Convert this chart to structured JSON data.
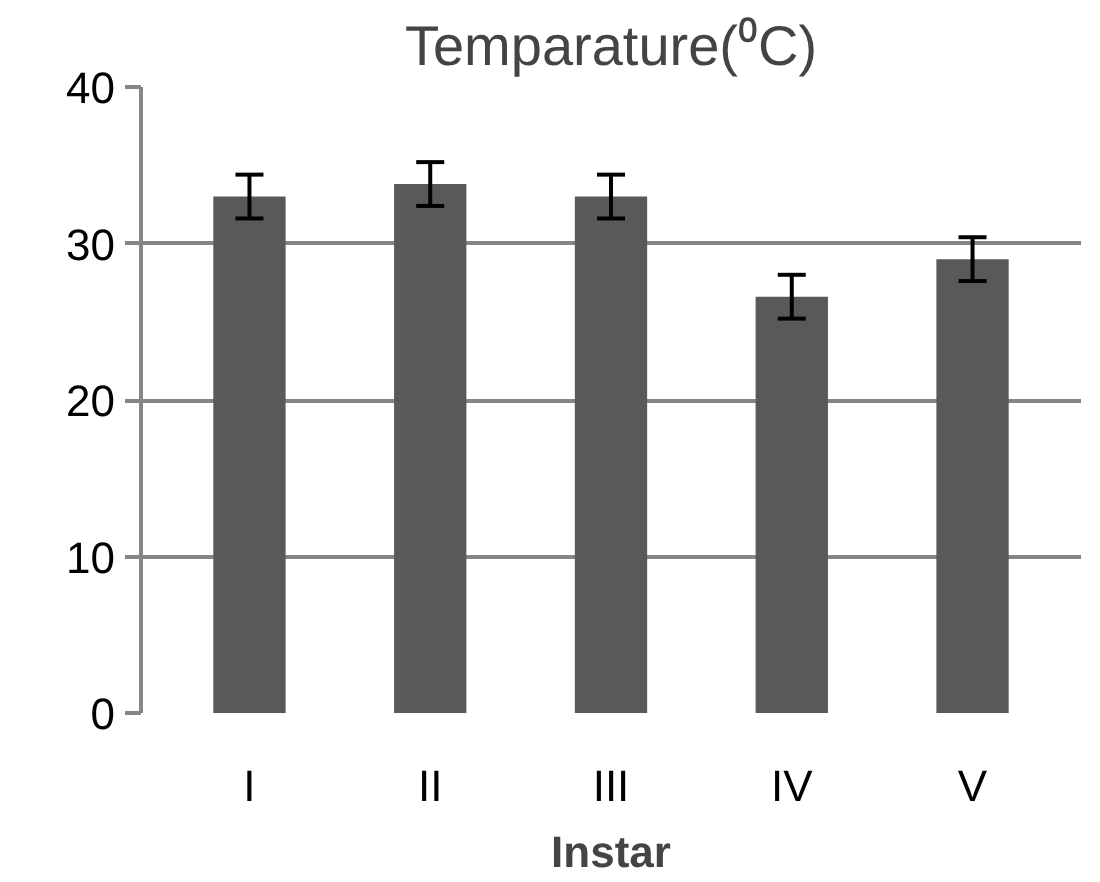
{
  "chart_data": {
    "type": "bar",
    "title": "Temparature(⁰C)",
    "xlabel": "Instar",
    "categories": [
      "I",
      "II",
      "III",
      "IV",
      "V"
    ],
    "values": [
      33.0,
      33.8,
      33.0,
      26.6,
      29.0
    ],
    "errors": [
      1.4,
      1.4,
      1.4,
      1.4,
      1.4
    ],
    "color": "#595959",
    "ylim": [
      0,
      40
    ],
    "yticks": [
      0,
      10,
      20,
      30,
      40
    ],
    "grid": "y"
  }
}
